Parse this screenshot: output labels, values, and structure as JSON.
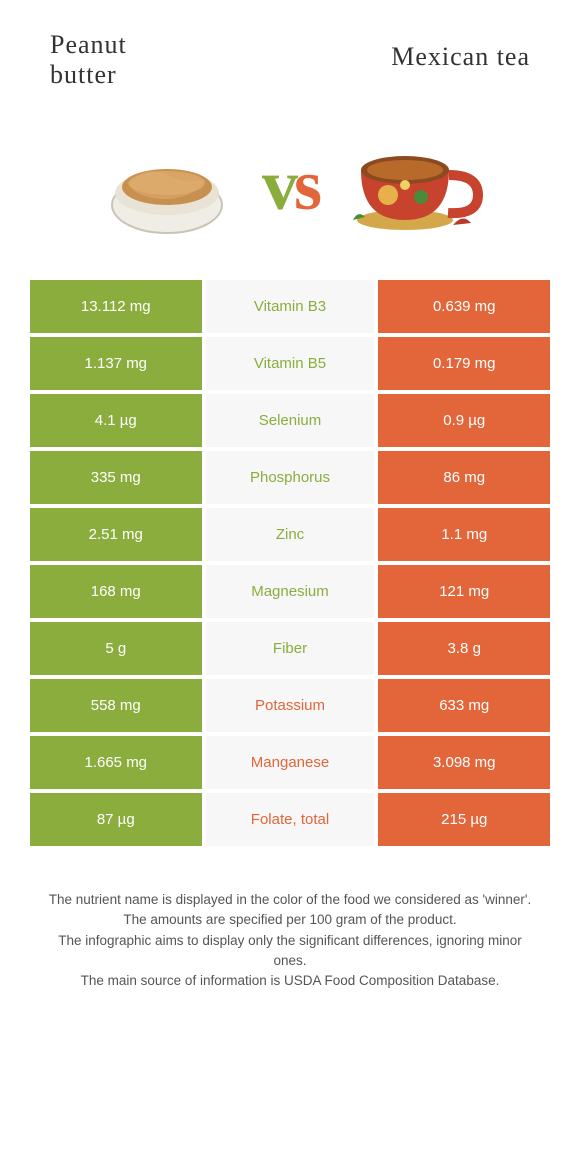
{
  "header": {
    "left_title_line1": "Peanut",
    "left_title_line2": "butter",
    "right_title": "Mexican tea"
  },
  "vs": {
    "v": "v",
    "s": "s"
  },
  "colors": {
    "green": "#8aad3e",
    "orange": "#e2663a",
    "row_bg": "#f7f7f7"
  },
  "rows": [
    {
      "left": "13.112 mg",
      "mid": "Vitamin B3",
      "right": "0.639 mg",
      "winner": "green"
    },
    {
      "left": "1.137 mg",
      "mid": "Vitamin B5",
      "right": "0.179 mg",
      "winner": "green"
    },
    {
      "left": "4.1 µg",
      "mid": "Selenium",
      "right": "0.9 µg",
      "winner": "green"
    },
    {
      "left": "335 mg",
      "mid": "Phosphorus",
      "right": "86 mg",
      "winner": "green"
    },
    {
      "left": "2.51 mg",
      "mid": "Zinc",
      "right": "1.1 mg",
      "winner": "green"
    },
    {
      "left": "168 mg",
      "mid": "Magnesium",
      "right": "121 mg",
      "winner": "green"
    },
    {
      "left": "5 g",
      "mid": "Fiber",
      "right": "3.8 g",
      "winner": "green"
    },
    {
      "left": "558 mg",
      "mid": "Potassium",
      "right": "633 mg",
      "winner": "orange"
    },
    {
      "left": "1.665 mg",
      "mid": "Manganese",
      "right": "3.098 mg",
      "winner": "orange"
    },
    {
      "left": "87 µg",
      "mid": "Folate, total",
      "right": "215 µg",
      "winner": "orange"
    }
  ],
  "footer": {
    "line1": "The nutrient name is displayed in the color of the food we considered as 'winner'.",
    "line2": "The amounts are specified per 100 gram of the product.",
    "line3": "The infographic aims to display only the significant differences, ignoring minor ones.",
    "line4": "The main source of information is USDA Food Composition Database."
  }
}
